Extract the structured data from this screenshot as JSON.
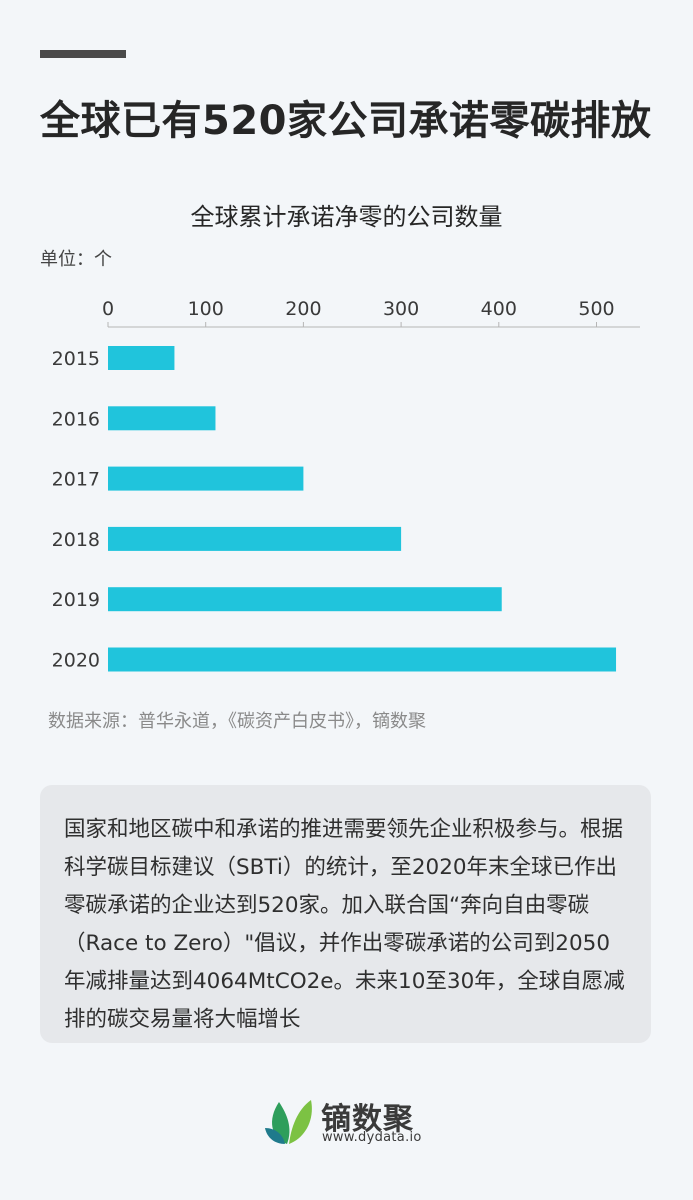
{
  "header": {
    "title": "全球已有520家公司承诺零碳排放"
  },
  "chart_data": {
    "type": "bar",
    "orientation": "horizontal",
    "title": "全球累计承诺净零的公司数量",
    "unit": "单位：个",
    "categories": [
      "2015",
      "2016",
      "2017",
      "2018",
      "2019",
      "2020"
    ],
    "values": [
      68,
      110,
      200,
      300,
      403,
      520
    ],
    "xlim": [
      0,
      550
    ],
    "xticks": [
      0,
      100,
      200,
      300,
      400,
      500
    ],
    "xaxis_position": "top",
    "grid": false,
    "bar_color": "#20c4dc"
  },
  "source": "数据来源：普华永道，《碳资产白皮书》，镝数聚",
  "info": {
    "text": "国家和地区碳中和承诺的推进需要领先企业积极参与。根据科学碳目标建议（SBTi）的统计，至2020年末全球已作出零碳承诺的企业达到520家。加入联合国“奔向自由零碳（Race to Zero）\"倡议，并作出零碳承诺的公司到2050年减排量达到4064MtCO2e。未来10至30年，全球自愿减排的碳交易量将大幅增长"
  },
  "footer": {
    "brand_name": "镝数聚",
    "brand_url": "www.dydata.io",
    "logo_icon": "leaf-logo-icon",
    "logo_colors": [
      "#2e9e5b",
      "#7cc243",
      "#1f7a8c"
    ]
  }
}
